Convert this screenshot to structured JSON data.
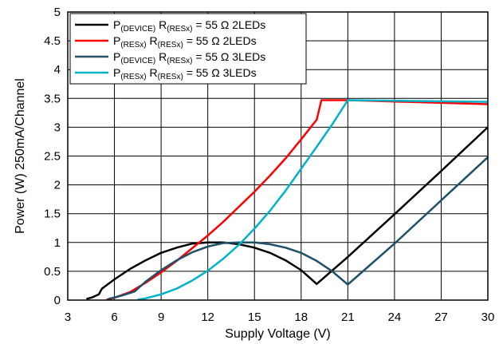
{
  "chart_data": {
    "type": "line",
    "xlabel": "Supply Voltage (V)",
    "ylabel": "Power (W) 250mA/Channel",
    "xlim": [
      3,
      30
    ],
    "ylim": [
      0,
      5
    ],
    "x_ticks": [
      "3",
      "6",
      "9",
      "12",
      "15",
      "18",
      "21",
      "24",
      "27",
      "30"
    ],
    "y_ticks": [
      "0",
      "0.5",
      "1",
      "1.5",
      "2",
      "2.5",
      "3",
      "3.5",
      "4",
      "4.5",
      "5"
    ],
    "grid": true,
    "legend_position": "top-left",
    "series": [
      {
        "legend": {
          "pre": "P",
          "sub1": "(DEVICE)",
          "mid": " R",
          "sub2": "(RESx)",
          "post": " = 55 Ω 2LEDs"
        },
        "color": "#000000",
        "points": [
          [
            4.2,
            0.02
          ],
          [
            4.6,
            0.05
          ],
          [
            5.0,
            0.1
          ],
          [
            5.2,
            0.2
          ],
          [
            6,
            0.36
          ],
          [
            7,
            0.54
          ],
          [
            8,
            0.69
          ],
          [
            9,
            0.82
          ],
          [
            10,
            0.91
          ],
          [
            11,
            0.98
          ],
          [
            12,
            1.0
          ],
          [
            13,
            1.0
          ],
          [
            14,
            0.97
          ],
          [
            15,
            0.91
          ],
          [
            16,
            0.82
          ],
          [
            17,
            0.69
          ],
          [
            18,
            0.52
          ],
          [
            19,
            0.28
          ],
          [
            21,
            0.75
          ],
          [
            24,
            1.49
          ],
          [
            27,
            2.24
          ],
          [
            30,
            3.0
          ]
        ]
      },
      {
        "legend": {
          "pre": "P",
          "sub1": "(RESx)",
          "mid": " R",
          "sub2": "(RESx)",
          "post": " = 55 Ω 2LEDs"
        },
        "color": "#ff0000",
        "points": [
          [
            5.5,
            0.01
          ],
          [
            6,
            0.04
          ],
          [
            7,
            0.14
          ],
          [
            8,
            0.3
          ],
          [
            9,
            0.48
          ],
          [
            10,
            0.68
          ],
          [
            11,
            0.9
          ],
          [
            12,
            1.12
          ],
          [
            13,
            1.36
          ],
          [
            14,
            1.62
          ],
          [
            15,
            1.88
          ],
          [
            16,
            2.16
          ],
          [
            17,
            2.46
          ],
          [
            18,
            2.79
          ],
          [
            19,
            3.13
          ],
          [
            19.3,
            3.47
          ],
          [
            21,
            3.47
          ],
          [
            30,
            3.4
          ]
        ]
      },
      {
        "legend": {
          "pre": "P",
          "sub1": "(DEVICE)",
          "mid": " R",
          "sub2": "(RESx)",
          "post": " = 55 Ω 3LEDs"
        },
        "color": "#1f5068",
        "points": [
          [
            5.6,
            0.02
          ],
          [
            6.5,
            0.08
          ],
          [
            7.3,
            0.15
          ],
          [
            8,
            0.32
          ],
          [
            9,
            0.52
          ],
          [
            10,
            0.69
          ],
          [
            11,
            0.83
          ],
          [
            12,
            0.93
          ],
          [
            13,
            0.99
          ],
          [
            14,
            1.0
          ],
          [
            15,
            1.0
          ],
          [
            16,
            0.97
          ],
          [
            17,
            0.91
          ],
          [
            18,
            0.82
          ],
          [
            19,
            0.68
          ],
          [
            20,
            0.5
          ],
          [
            21,
            0.27
          ],
          [
            24,
            0.98
          ],
          [
            27,
            1.73
          ],
          [
            30,
            2.48
          ]
        ]
      },
      {
        "legend": {
          "pre": "P",
          "sub1": "(RESx)",
          "mid": " R",
          "sub2": "(RESx)",
          "post": " = 55 Ω 3LEDs"
        },
        "color": "#00b3c7",
        "points": [
          [
            7.5,
            0.01
          ],
          [
            8,
            0.03
          ],
          [
            9,
            0.1
          ],
          [
            10,
            0.2
          ],
          [
            11,
            0.34
          ],
          [
            12,
            0.51
          ],
          [
            13,
            0.72
          ],
          [
            14,
            0.96
          ],
          [
            15,
            1.24
          ],
          [
            16,
            1.55
          ],
          [
            17,
            1.9
          ],
          [
            18,
            2.28
          ],
          [
            19,
            2.66
          ],
          [
            20,
            3.05
          ],
          [
            21,
            3.47
          ],
          [
            30,
            3.44
          ]
        ]
      }
    ]
  }
}
